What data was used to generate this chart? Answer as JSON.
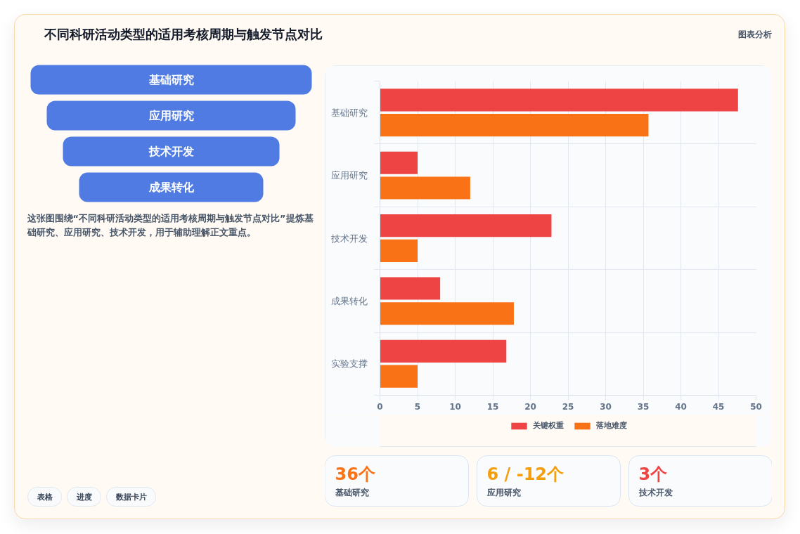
{
  "chart_data": [
    {
      "type": "other",
      "title": "不同科研活动类型的适用考核周期与触发节点对比",
      "annotations": [
        "图表分析"
      ]
    },
    {
      "type": "other",
      "categories": [
        "基础研究",
        "应用研究",
        "技术开发",
        "成果转化"
      ],
      "colors": [
        "#4f7be3",
        "#4f7be3",
        "#4f7be3",
        "#4f7be3"
      ],
      "annotations": [
        "这张图围绕“不同科研活动类型的适用考核周期与触发节点对比”提炼基础研究、应用研究、技术开发，用于辅助理解正文重点。",
        "表格",
        "进度",
        "数据卡片"
      ]
    },
    {
      "type": "bar",
      "orientation": "horizontal",
      "categories": [
        "基础研究",
        "应用研究",
        "技术开发",
        "成果转化",
        "实验支撑"
      ],
      "series": [
        {
          "name": "关键权重",
          "color": "#ef4444",
          "values": [
            47.6,
            5,
            22.8,
            8,
            16.8
          ]
        },
        {
          "name": "落地难度",
          "color": "#f97316",
          "values": [
            35.7,
            12,
            5,
            17.8,
            5
          ]
        }
      ],
      "xlim": [
        0,
        50
      ],
      "xticks": [
        0,
        5,
        10,
        15,
        20,
        25,
        30,
        35,
        40,
        45,
        50
      ],
      "grid": true,
      "legend": "bottom"
    },
    {
      "type": "other",
      "annotations": [
        "36个",
        "基础研究",
        "6 / -12个",
        "应用研究",
        "3个",
        "技术开发"
      ],
      "colors": [
        "#f97316",
        "#f59e0b",
        "#ef4444"
      ]
    }
  ]
}
